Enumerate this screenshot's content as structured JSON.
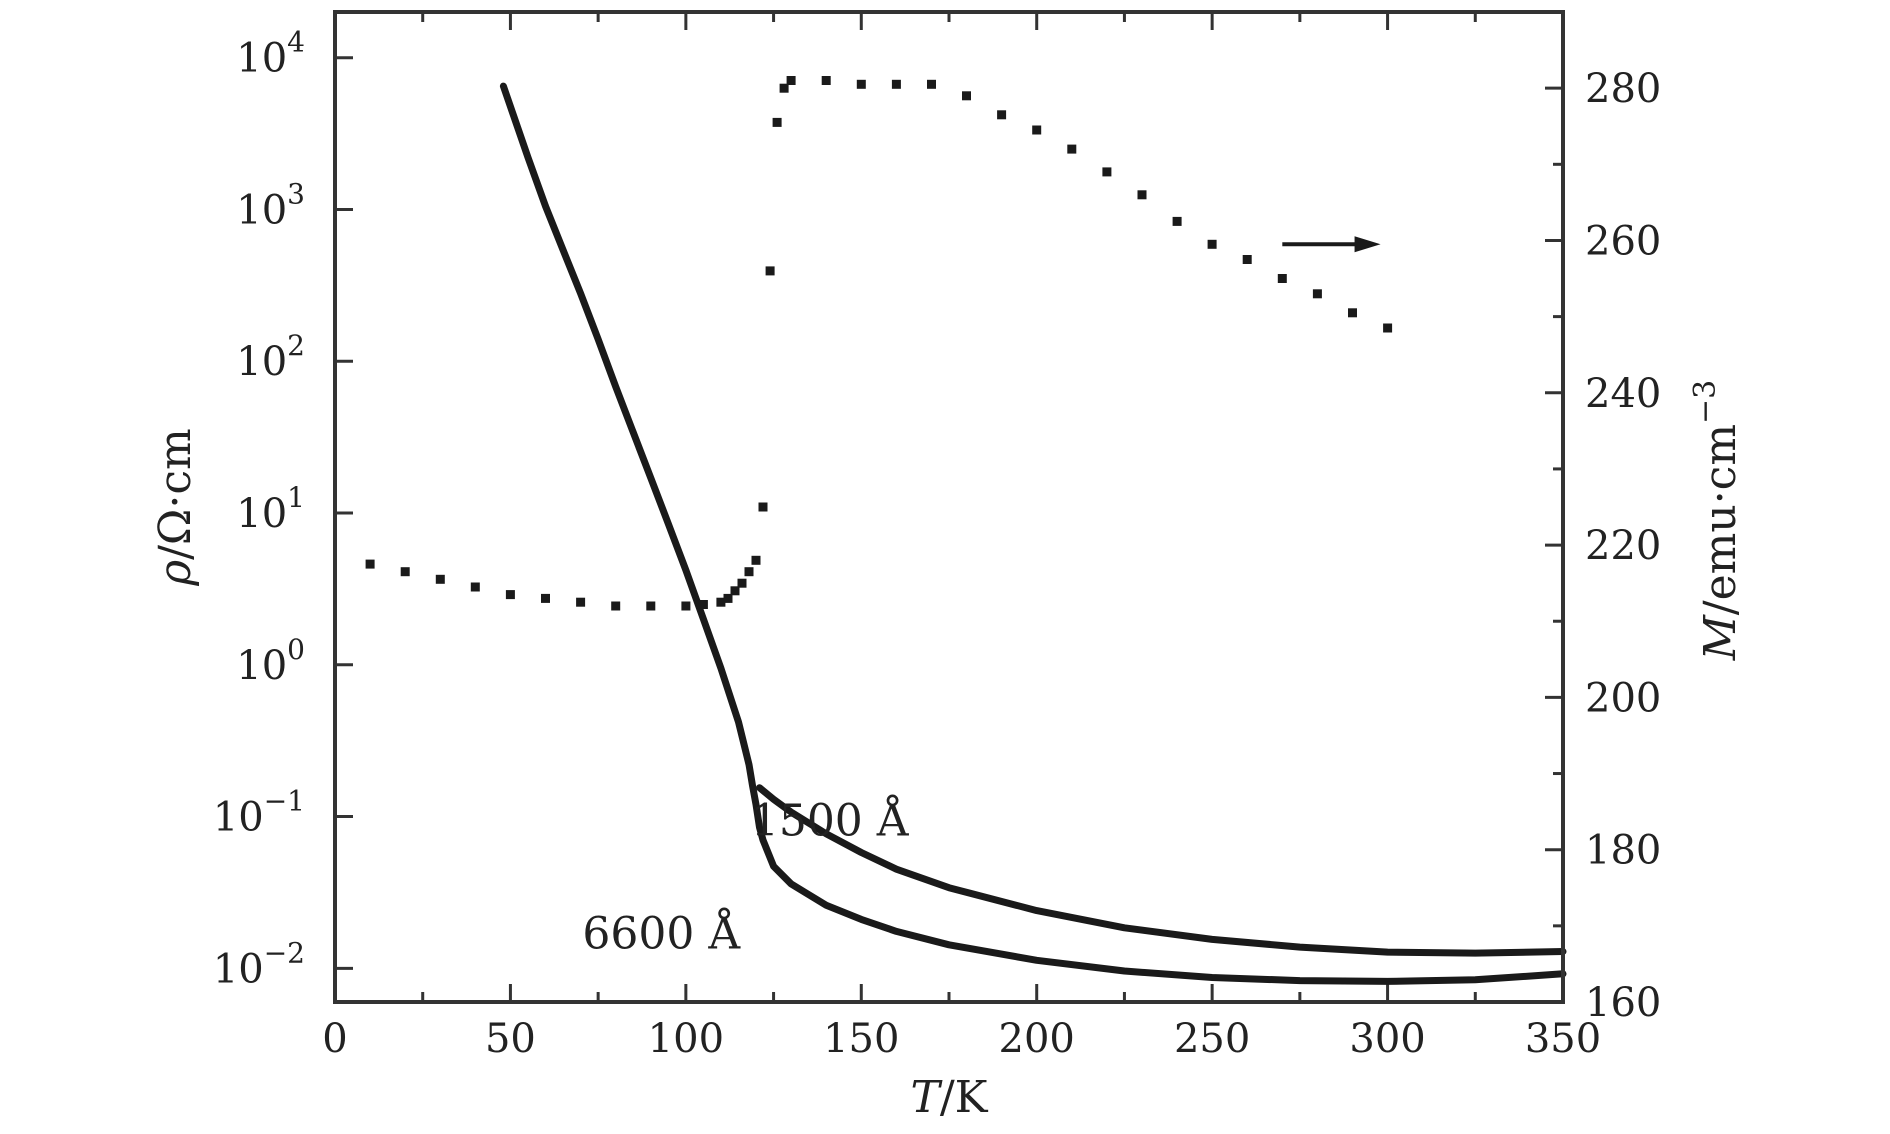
{
  "chart_data": {
    "type": "line",
    "x_axis": {
      "label_italic": "T",
      "label_rest": "/K",
      "range": [
        0,
        350
      ],
      "ticks": [
        0,
        50,
        100,
        150,
        200,
        250,
        300,
        350
      ],
      "minor_step": 25
    },
    "y_left": {
      "label_italic": "ρ",
      "label_rest": "/Ω·cm",
      "scale": "log",
      "range": [
        0.006,
        20000
      ],
      "ticks": [
        {
          "value": 0.01,
          "base": "10",
          "exp": "−2"
        },
        {
          "value": 0.1,
          "base": "10",
          "exp": "−1"
        },
        {
          "value": 1,
          "base": "10",
          "exp": "0"
        },
        {
          "value": 10,
          "base": "10",
          "exp": "1"
        },
        {
          "value": 100,
          "base": "10",
          "exp": "2"
        },
        {
          "value": 1000,
          "base": "10",
          "exp": "3"
        },
        {
          "value": 10000,
          "base": "10",
          "exp": "4"
        }
      ]
    },
    "y_right": {
      "label_italic": "M",
      "label_rest": "/emu·cm",
      "label_sup": "−3",
      "range": [
        160,
        290
      ],
      "ticks": [
        160,
        180,
        200,
        220,
        240,
        260,
        280
      ],
      "minor_step": 10
    },
    "series": [
      {
        "axis": "left",
        "style": "line",
        "x": [
          48,
          55,
          60,
          65,
          70,
          75,
          80,
          85,
          90,
          95,
          100,
          105,
          110,
          115,
          118,
          119,
          120,
          121,
          122,
          125,
          130,
          140,
          150,
          160,
          175,
          200,
          225,
          250,
          275,
          300,
          325,
          350
        ],
        "y": [
          6500,
          2200,
          1050,
          540,
          280,
          140,
          68,
          34,
          17,
          8.5,
          4.2,
          2,
          0.95,
          0.42,
          0.22,
          0.16,
          0.12,
          0.085,
          0.07,
          0.047,
          0.036,
          0.026,
          0.021,
          0.0175,
          0.0143,
          0.0113,
          0.0096,
          0.0087,
          0.0083,
          0.0082,
          0.0084,
          0.0092
        ]
      },
      {
        "axis": "left",
        "style": "line",
        "x": [
          121,
          125,
          130,
          140,
          150,
          160,
          175,
          200,
          225,
          250,
          275,
          300,
          325,
          350
        ],
        "y": [
          0.155,
          0.13,
          0.107,
          0.077,
          0.058,
          0.045,
          0.034,
          0.024,
          0.0185,
          0.0155,
          0.0138,
          0.0128,
          0.0126,
          0.0129
        ]
      },
      {
        "axis": "right",
        "style": "points",
        "x": [
          10,
          20,
          30,
          40,
          50,
          60,
          70,
          80,
          90,
          100,
          105,
          110,
          112,
          114,
          116,
          118,
          120,
          122,
          124,
          126,
          128,
          130,
          140,
          150,
          160,
          170,
          180,
          190,
          200,
          210,
          220,
          230,
          240,
          250,
          260,
          270,
          280,
          290,
          300
        ],
        "y": [
          217.5,
          216.5,
          215.5,
          214.5,
          213.5,
          213,
          212.5,
          212,
          212,
          212,
          212.2,
          212.5,
          213,
          214,
          215,
          216.5,
          218,
          225,
          256,
          275.5,
          280,
          281,
          281,
          280.5,
          280.5,
          280.5,
          279,
          276.5,
          274.5,
          272,
          269,
          266,
          262.5,
          259.5,
          257.5,
          255,
          253,
          250.5,
          248.5
        ]
      }
    ],
    "annotations": [
      {
        "text": "1500 Å",
        "x": 141,
        "y": 0.075
      },
      {
        "text": "6600 Å",
        "x": 93,
        "y": 0.0135
      }
    ],
    "arrow": {
      "x_from": 270,
      "x_to": 298,
      "y_right": 259.5,
      "direction": "right"
    },
    "grid": false,
    "legend": "none"
  }
}
